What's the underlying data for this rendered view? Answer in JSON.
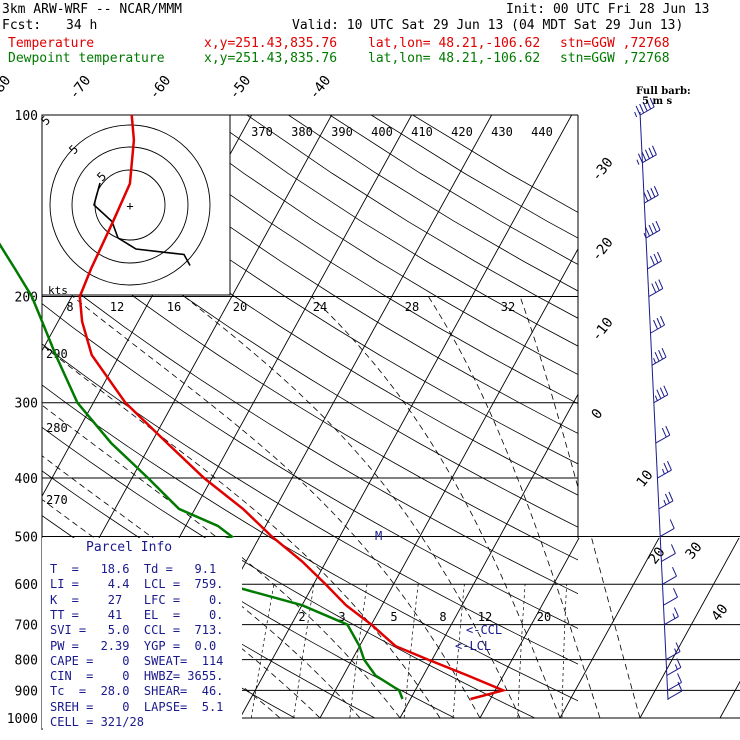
{
  "header": {
    "model": "3km ARW-WRF -- NCAR/MMM",
    "init": "Init: 00 UTC Fri 28 Jun 13",
    "fcst_label": "Fcst:",
    "fcst_value": "34 h",
    "valid": "Valid: 10 UTC Sat 29 Jun 13 (04 MDT Sat 29 Jun 13)",
    "temp_label": "Temperature",
    "temp_xy": "x,y=251.43,835.76",
    "temp_latlon": "lat,lon= 48.21,-106.62",
    "temp_stn": "stn=GGW ,72768",
    "dew_label": "Dewpoint temperature",
    "dew_xy": "x,y=251.43,835.76",
    "dew_latlon": "lat,lon= 48.21,-106.62",
    "dew_stn": "stn=GGW ,72768"
  },
  "legend": {
    "full_barb": "Full barb:",
    "full_barb_units": "5 m s"
  },
  "hodograph": {
    "kts_label": "kts",
    "ring_labels": [
      "5",
      "5",
      "5"
    ]
  },
  "parcel_info": {
    "title": "Parcel Info",
    "rows": [
      "T  =   18.6  Td =   9.1",
      "LI =    4.4  LCL =  759.",
      "K  =    27   LFC =    0.",
      "TT =    41   EL  =    0.",
      "SVI =   5.0  CCL =  713.",
      "PW =   2.39  YGP =  0.0",
      "CAPE =    0  SWEAT=  114",
      "CIN  =    0  HWBZ= 3655.",
      "Tc  =  28.0  SHEAR=  46.",
      "SREH =    0  LAPSE=  5.1",
      "CELL = 321/28"
    ]
  },
  "chart_data": {
    "type": "line",
    "title": "",
    "chart_kind": "skew-T log-p sounding",
    "y_axis": {
      "scale": "log",
      "ylim": [
        1000,
        100
      ],
      "tick_labels": [
        "100",
        "200",
        "300",
        "400",
        "500",
        "600",
        "700",
        "800",
        "900",
        "1000"
      ]
    },
    "isotherm_labels_top": [
      "-80",
      "-70",
      "-60",
      "-50",
      "-40"
    ],
    "isotherm_labels_right": [
      "-30",
      "-20",
      "-10",
      "0",
      "10",
      "20",
      "30",
      "40"
    ],
    "theta_labels": [
      "370",
      "380",
      "390",
      "400",
      "410",
      "420",
      "430",
      "440"
    ],
    "dry_adiabat_labels_left": [
      "290",
      "280",
      "270"
    ],
    "mixing_ratio_labels_upper": [
      "8",
      "12",
      "16",
      "20",
      "24",
      "28",
      "32"
    ],
    "mixing_ratio_labels_lower": [
      "2",
      "3",
      "5",
      "8",
      "12",
      "20"
    ],
    "annotations": [
      "CCL",
      "LCL",
      "M"
    ],
    "series": [
      {
        "name": "Temperature",
        "color": "#e00000",
        "pressure": [
          930,
          900,
          850,
          800,
          760,
          700,
          650,
          600,
          550,
          500,
          450,
          400,
          350,
          300,
          250,
          220,
          200,
          180,
          150,
          130,
          110,
          100
        ],
        "temperature": [
          17.5,
          21.0,
          15.5,
          9.5,
          4.5,
          0.0,
          -4.5,
          -8.5,
          -13.0,
          -18.5,
          -24.0,
          -31.0,
          -38.0,
          -46.0,
          -53.5,
          -57.0,
          -59.0,
          -59.5,
          -60.0,
          -60.5,
          -63.0,
          -65.0
        ]
      },
      {
        "name": "Dewpoint temperature",
        "color": "#007a00",
        "pressure": [
          930,
          900,
          850,
          800,
          760,
          700,
          650,
          600,
          550,
          500,
          480,
          450,
          400,
          350,
          300,
          250,
          220,
          200,
          180,
          150,
          130,
          110,
          100
        ],
        "dewpoint": [
          9.0,
          8.0,
          4.0,
          1.5,
          0.0,
          -3.0,
          -10.0,
          -21.0,
          -30.0,
          -23.5,
          -26.0,
          -32.0,
          -38.0,
          -45.0,
          -52.0,
          -58.0,
          -62.0,
          -65.0,
          -69.0,
          -76.0,
          -80.0,
          -84.0,
          -88.0
        ]
      }
    ],
    "hodograph_trace": [
      [
        -0.5,
        -0.4
      ],
      [
        -0.6,
        0.0
      ],
      [
        -0.3,
        0.3
      ],
      [
        -0.2,
        0.6
      ],
      [
        0.1,
        0.8
      ],
      [
        0.5,
        0.85
      ],
      [
        0.9,
        0.9
      ],
      [
        1.0,
        1.1
      ]
    ],
    "wind_barbs": [
      {
        "p": 100,
        "spd_kts": 45
      },
      {
        "p": 120,
        "spd_kts": 45
      },
      {
        "p": 140,
        "spd_kts": 40
      },
      {
        "p": 160,
        "spd_kts": 35
      },
      {
        "p": 180,
        "spd_kts": 30
      },
      {
        "p": 200,
        "spd_kts": 30
      },
      {
        "p": 230,
        "spd_kts": 30
      },
      {
        "p": 260,
        "spd_kts": 25
      },
      {
        "p": 300,
        "spd_kts": 25
      },
      {
        "p": 350,
        "spd_kts": 20
      },
      {
        "p": 400,
        "spd_kts": 15
      },
      {
        "p": 450,
        "spd_kts": 15
      },
      {
        "p": 500,
        "spd_kts": 10
      },
      {
        "p": 550,
        "spd_kts": 10
      },
      {
        "p": 600,
        "spd_kts": 10
      },
      {
        "p": 650,
        "spd_kts": 10
      },
      {
        "p": 700,
        "spd_kts": 5
      },
      {
        "p": 800,
        "spd_kts": 5
      },
      {
        "p": 850,
        "spd_kts": 5
      },
      {
        "p": 900,
        "spd_kts": 10
      },
      {
        "p": 930,
        "spd_kts": 10
      }
    ]
  }
}
